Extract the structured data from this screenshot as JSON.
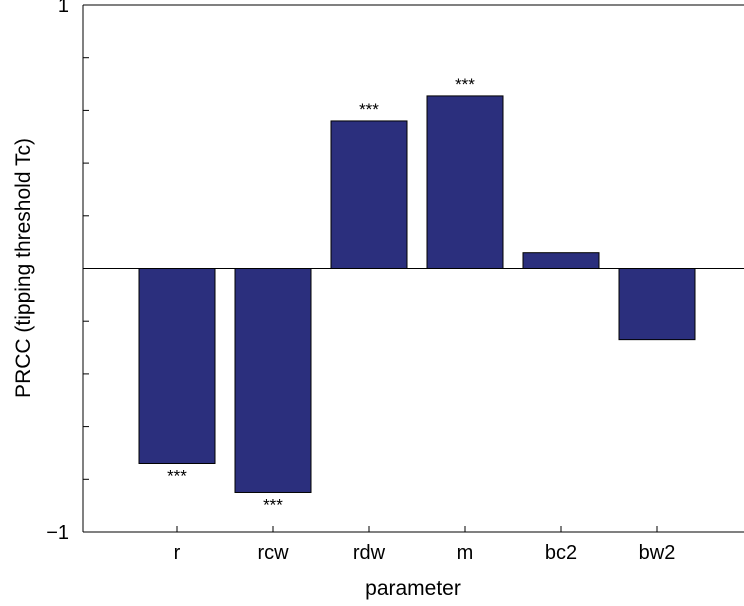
{
  "chart_data": {
    "type": "bar",
    "xlabel": "parameter",
    "ylabel": "PRCC (tipping threshold Tc)",
    "categories": [
      "r",
      "rcw",
      "rdw",
      "m",
      "bc2",
      "bw2"
    ],
    "values": [
      -0.74,
      -0.85,
      0.56,
      0.655,
      0.06,
      -0.27
    ],
    "significance": [
      "***",
      "***",
      "***",
      "***",
      "",
      ""
    ],
    "ylim": [
      -1,
      1
    ],
    "yticks": [
      -1,
      -0.8,
      -0.6,
      -0.4,
      -0.2,
      0,
      0.2,
      0.4,
      0.6,
      0.8,
      1
    ],
    "ytick_labels": [
      "−1",
      "",
      "",
      "",
      "",
      "",
      "",
      "",
      "",
      "",
      "1"
    ],
    "bar_color": "#2b2f7d",
    "grid": false,
    "zero_line": true
  }
}
